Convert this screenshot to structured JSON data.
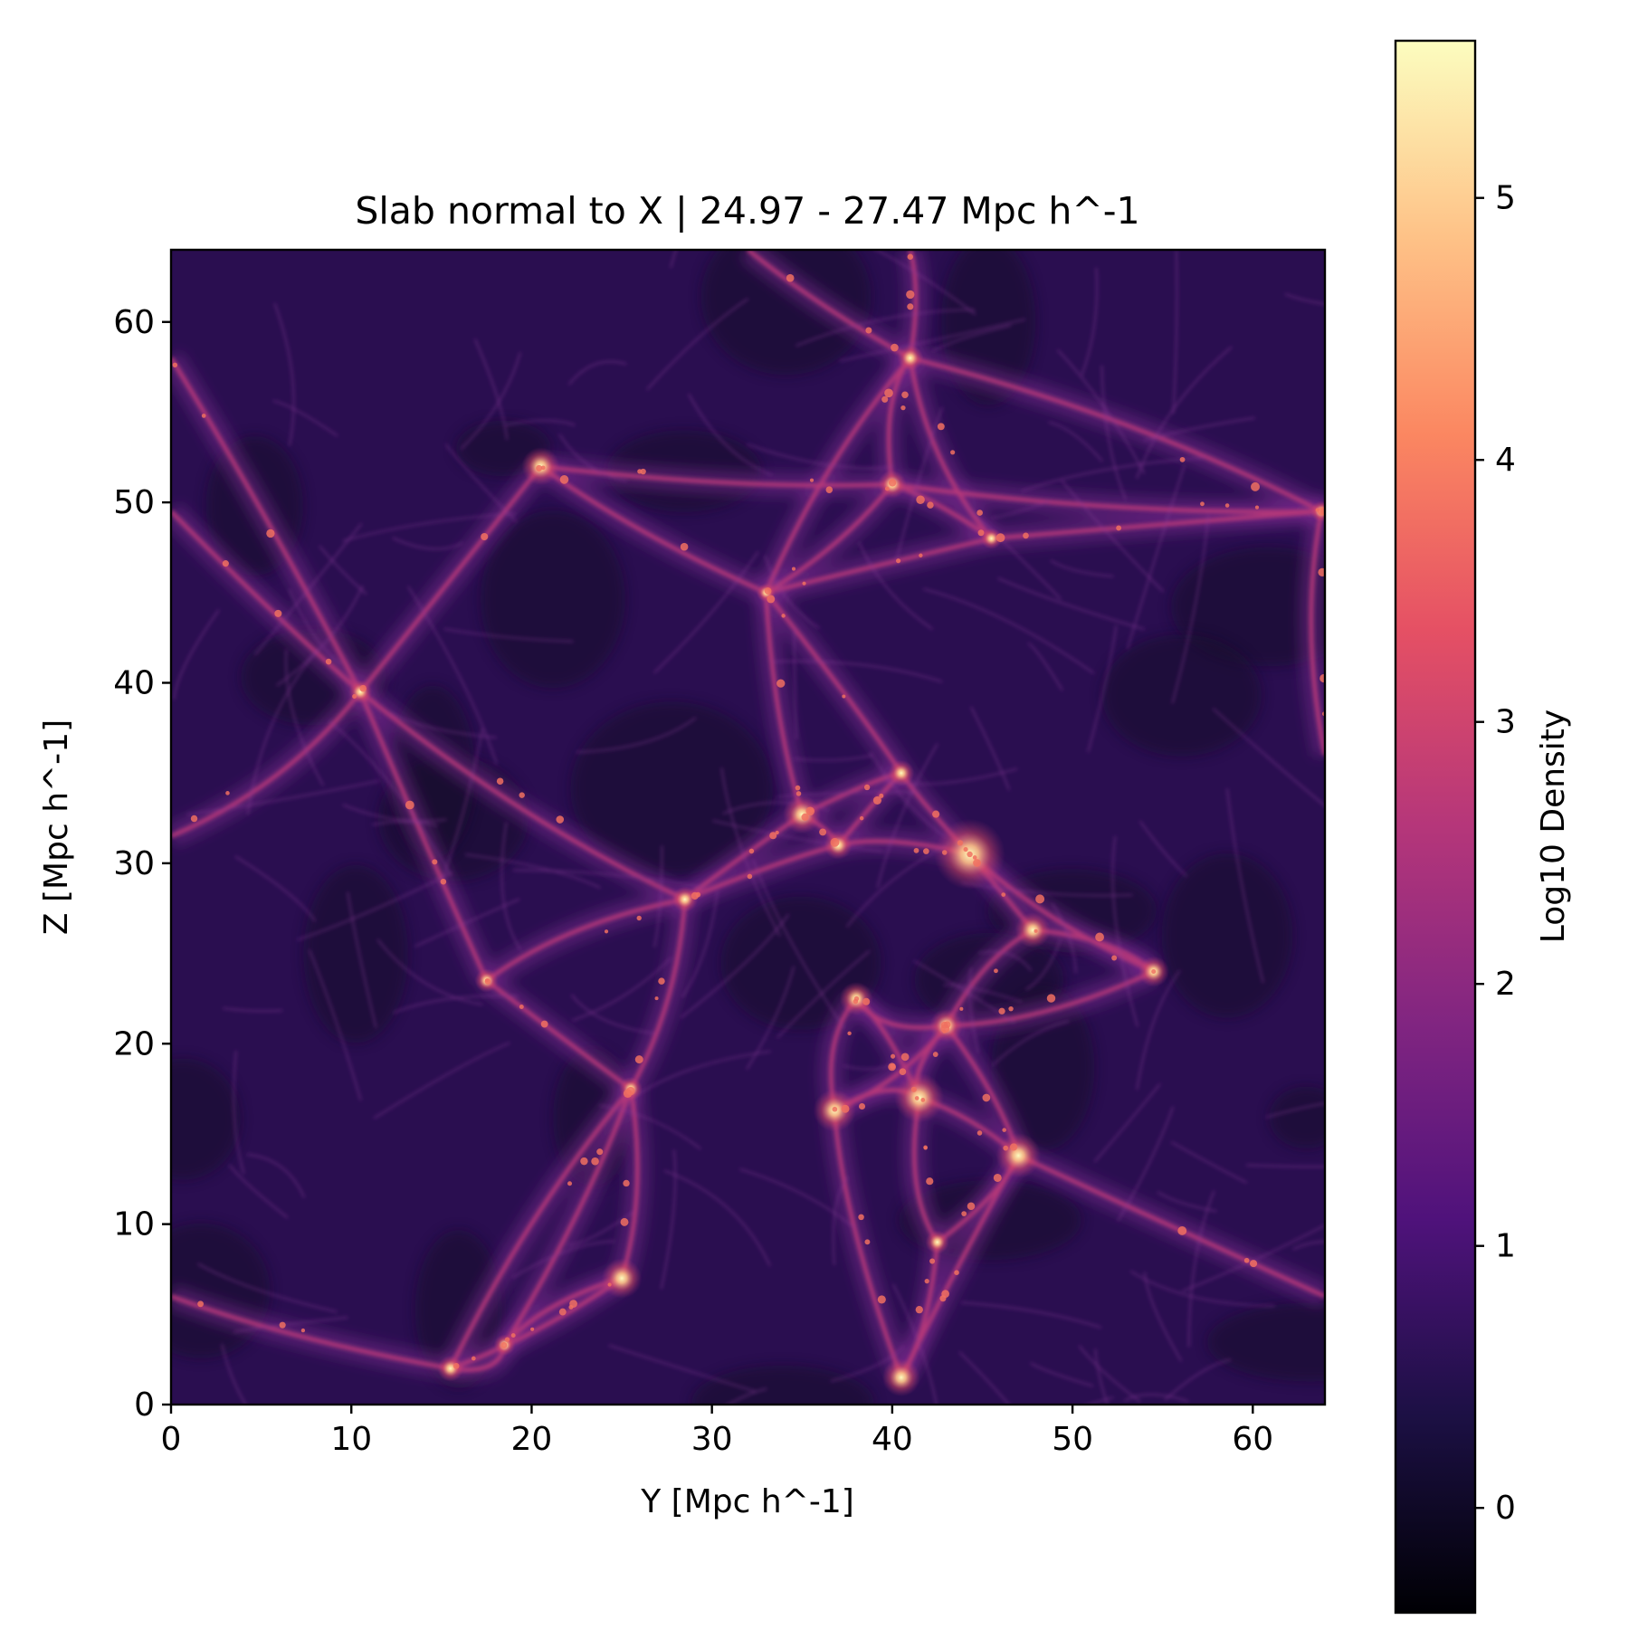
{
  "chart_data": {
    "type": "heatmap",
    "title": "Slab normal to X | 24.97 - 27.47 Mpc h^-1",
    "xlabel": "Y [Mpc h^-1]",
    "ylabel": "Z [Mpc h^-1]",
    "xlim": [
      0,
      64
    ],
    "ylim": [
      0,
      64
    ],
    "xticks": [
      0,
      10,
      20,
      30,
      40,
      50,
      60
    ],
    "yticks": [
      0,
      10,
      20,
      30,
      40,
      50,
      60
    ],
    "colormap": "magma",
    "colorbar": {
      "label": "Log10 Density",
      "range": [
        -0.4,
        5.6
      ],
      "ticks": [
        0,
        1,
        2,
        3,
        4,
        5
      ]
    },
    "colors": {
      "background": "#2a0e50",
      "void": "#13082c",
      "filament": "#b73779",
      "node": "#fcae78",
      "core": "#fcfdbf"
    },
    "nodes": [
      {
        "y": 44.3,
        "z": 30.5,
        "value": 5.4
      },
      {
        "y": 41.5,
        "z": 17.0,
        "value": 4.5
      },
      {
        "y": 47.0,
        "z": 13.8,
        "value": 4.3
      },
      {
        "y": 36.8,
        "z": 16.3,
        "value": 4.2
      },
      {
        "y": 35.0,
        "z": 32.7,
        "value": 4.0
      },
      {
        "y": 25.0,
        "z": 7.0,
        "value": 4.1
      },
      {
        "y": 20.5,
        "z": 52.0,
        "value": 4.0
      },
      {
        "y": 47.8,
        "z": 26.3,
        "value": 3.9
      },
      {
        "y": 40.5,
        "z": 1.5,
        "value": 4.0
      },
      {
        "y": 38.0,
        "z": 22.5,
        "value": 3.8
      },
      {
        "y": 43.0,
        "z": 21.0,
        "value": 3.8
      },
      {
        "y": 54.5,
        "z": 24.0,
        "value": 3.7
      },
      {
        "y": 40.0,
        "z": 51.0,
        "value": 3.6
      },
      {
        "y": 37.0,
        "z": 31.0,
        "value": 3.6
      },
      {
        "y": 28.5,
        "z": 28.0,
        "value": 3.5
      },
      {
        "y": 17.5,
        "z": 23.5,
        "value": 3.4
      },
      {
        "y": 10.5,
        "z": 39.5,
        "value": 3.4
      },
      {
        "y": 41.0,
        "z": 58.0,
        "value": 3.5
      },
      {
        "y": 15.5,
        "z": 2.0,
        "value": 3.5
      },
      {
        "y": 63.8,
        "z": 49.5,
        "value": 3.3
      },
      {
        "y": 18.5,
        "z": 3.3,
        "value": 3.3
      },
      {
        "y": 33.0,
        "z": 45.0,
        "value": 3.2
      },
      {
        "y": 45.5,
        "z": 48.0,
        "value": 3.3
      },
      {
        "y": 40.5,
        "z": 35.0,
        "value": 3.5
      },
      {
        "y": 25.5,
        "z": 17.5,
        "value": 3.4
      },
      {
        "y": 42.5,
        "z": 9.0,
        "value": 3.4
      }
    ]
  }
}
